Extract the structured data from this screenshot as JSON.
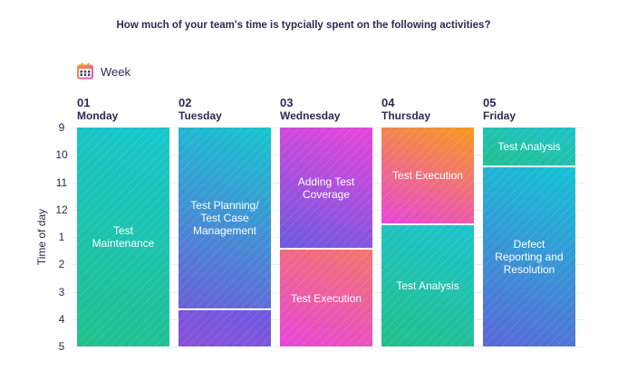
{
  "title": "How much of your team's time is typcially spent on the following activities?",
  "legend": {
    "label": "Week",
    "icon": "calendar-icon"
  },
  "chart_data": {
    "type": "schedule",
    "ylabel": "Time of day",
    "y_ticks": [
      "9",
      "10",
      "11",
      "12",
      "1",
      "2",
      "3",
      "4",
      "5"
    ],
    "ylim": [
      9,
      17
    ],
    "days": [
      {
        "number": "01",
        "name": "Monday",
        "blocks": [
          {
            "label": "Test Maintenance",
            "start": 9,
            "end": 17,
            "gradient": [
              "#17c6ce",
              "#21c08c"
            ]
          }
        ]
      },
      {
        "number": "02",
        "name": "Tuesday",
        "blocks": [
          {
            "label": "Test Planning/ Test Case Management",
            "start": 9,
            "end": 15.6,
            "gradient": [
              "#15c6cf",
              "#6a5fd9"
            ]
          },
          {
            "label": "",
            "start": 15.6,
            "end": 17,
            "gradient": [
              "#6c5ae0",
              "#8a4fd6"
            ]
          }
        ]
      },
      {
        "number": "03",
        "name": "Wednesday",
        "blocks": [
          {
            "label": "Adding Test Coverage",
            "start": 9,
            "end": 13.4,
            "gradient": [
              "#e845d9",
              "#6a5ae0"
            ]
          },
          {
            "label": "Test Execution",
            "start": 13.4,
            "end": 17,
            "gradient": [
              "#f2766d",
              "#e845d9"
            ]
          }
        ]
      },
      {
        "number": "04",
        "name": "Thursday",
        "blocks": [
          {
            "label": "Test Execution",
            "start": 9,
            "end": 12.5,
            "gradient": [
              "#f79a1e",
              "#e845d9"
            ]
          },
          {
            "label": "Test Analysis",
            "start": 12.5,
            "end": 17,
            "gradient": [
              "#1ec3cd",
              "#22c08a"
            ]
          }
        ]
      },
      {
        "number": "05",
        "name": "Friday",
        "blocks": [
          {
            "label": "Test Analysis",
            "start": 9,
            "end": 10.4,
            "gradient": [
              "#1ec3cd",
              "#23c08d"
            ]
          },
          {
            "label": "Defect Reporting and Resolution",
            "start": 10.4,
            "end": 17,
            "gradient": [
              "#14c3d4",
              "#5a67d8"
            ]
          }
        ]
      }
    ]
  }
}
